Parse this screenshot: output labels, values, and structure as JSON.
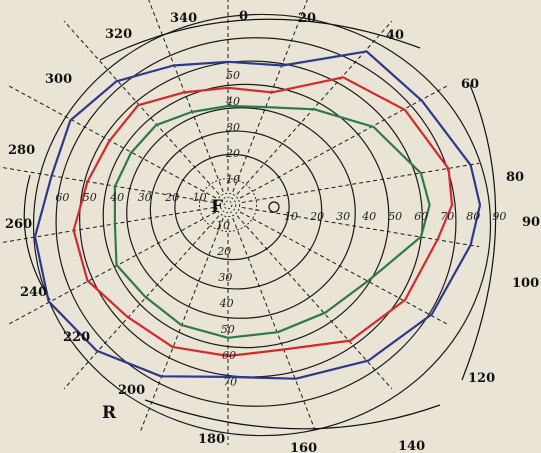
{
  "chart_data": {
    "type": "polar",
    "degree_labels": [
      "0",
      "20",
      "40",
      "60",
      "80",
      "90",
      "100",
      "120",
      "140",
      "160",
      "180",
      "200",
      "220",
      "240",
      "260",
      "280",
      "300",
      "320",
      "340"
    ],
    "radius_scale_up": [
      "10",
      "20",
      "30",
      "40",
      "50"
    ],
    "radius_scale_down": [
      "10",
      "20",
      "30",
      "40",
      "50",
      "60",
      "70"
    ],
    "radius_scale_right": [
      "10",
      "20",
      "30",
      "40",
      "50",
      "60",
      "70",
      "80",
      "90"
    ],
    "radius_scale_left": [
      "10",
      "20",
      "30",
      "40",
      "50",
      "60"
    ],
    "fixation_label": "F",
    "eye_label": "R",
    "colors": {
      "blue": "#2a3a8c",
      "red": "#d42a2a",
      "green": "#2e7a4a"
    },
    "series": [
      {
        "color": "#2a3a8c",
        "points": [
          [
            0,
            55
          ],
          [
            20,
            57
          ],
          [
            40,
            77
          ],
          [
            60,
            80
          ],
          [
            80,
            88
          ],
          [
            90,
            90
          ],
          [
            100,
            88
          ],
          [
            120,
            84
          ],
          [
            140,
            78
          ],
          [
            160,
            71
          ],
          [
            180,
            66
          ],
          [
            200,
            70
          ],
          [
            220,
            73
          ],
          [
            240,
            74
          ],
          [
            260,
            70
          ],
          [
            280,
            64
          ],
          [
            300,
            65
          ],
          [
            320,
            62
          ],
          [
            340,
            57
          ]
        ]
      },
      {
        "color": "#d42a2a",
        "points": [
          [
            0,
            45
          ],
          [
            20,
            46
          ],
          [
            40,
            64
          ],
          [
            60,
            73
          ],
          [
            80,
            80
          ],
          [
            90,
            80
          ],
          [
            100,
            76
          ],
          [
            120,
            73
          ],
          [
            140,
            68
          ],
          [
            160,
            59
          ],
          [
            180,
            58
          ],
          [
            200,
            58
          ],
          [
            220,
            56
          ],
          [
            240,
            58
          ],
          [
            260,
            56
          ],
          [
            280,
            51
          ],
          [
            300,
            49
          ],
          [
            320,
            50
          ],
          [
            340,
            46
          ]
        ]
      },
      {
        "color": "#2e7a4a",
        "points": [
          [
            0,
            38
          ],
          [
            20,
            40
          ],
          [
            40,
            48
          ],
          [
            60,
            60
          ],
          [
            80,
            70
          ],
          [
            90,
            72
          ],
          [
            100,
            70
          ],
          [
            120,
            58
          ],
          [
            140,
            54
          ],
          [
            160,
            52
          ],
          [
            180,
            51
          ],
          [
            200,
            49
          ],
          [
            220,
            46
          ],
          [
            240,
            46
          ],
          [
            260,
            41
          ],
          [
            280,
            41
          ],
          [
            300,
            40
          ],
          [
            320,
            40
          ],
          [
            340,
            38
          ]
        ]
      }
    ]
  }
}
